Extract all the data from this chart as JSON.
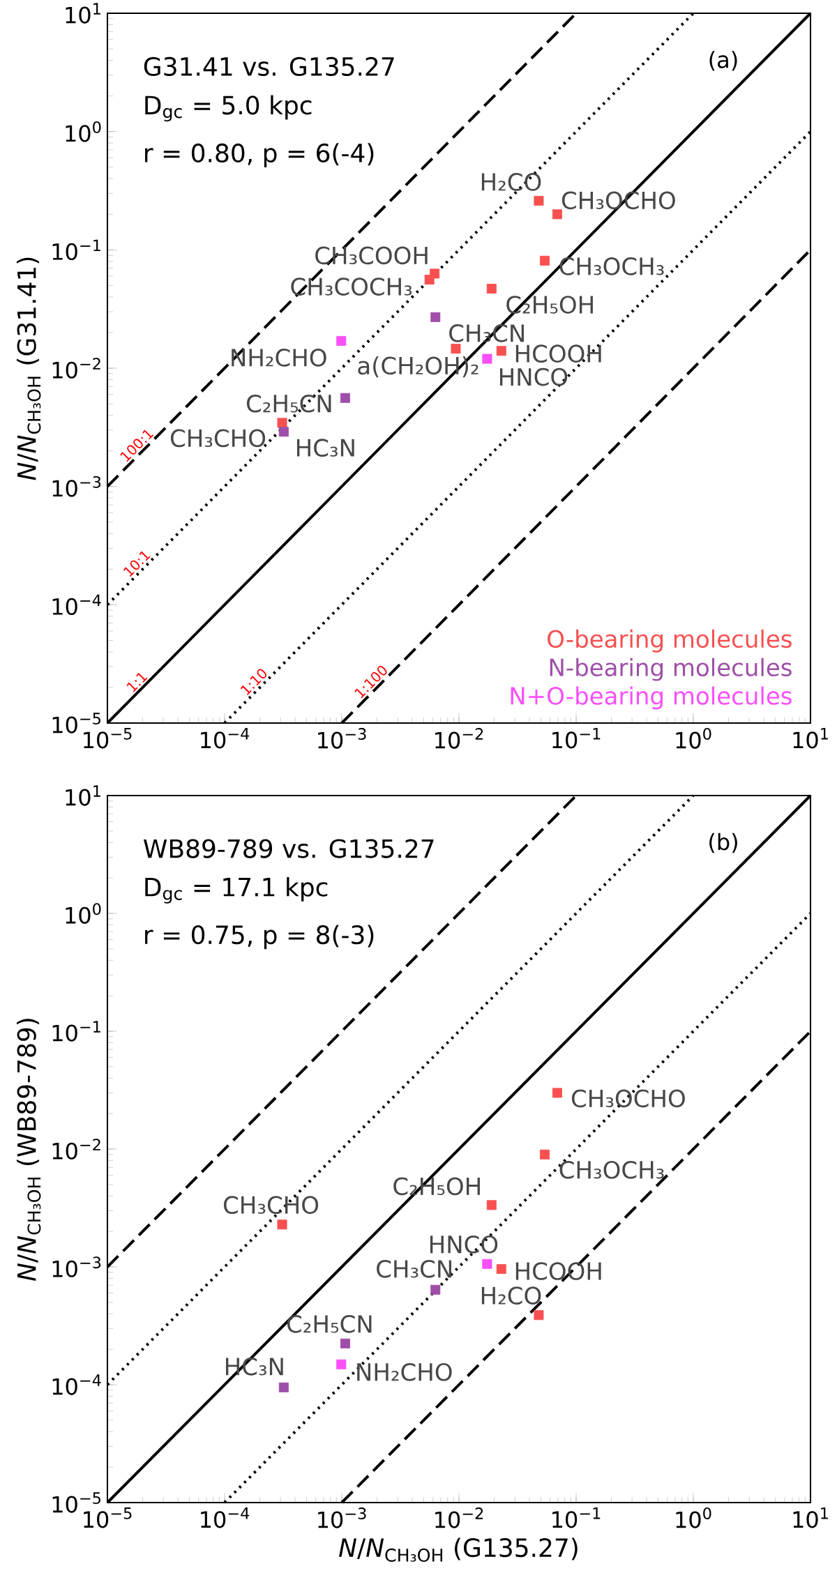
{
  "chart_data": [
    {
      "type": "scatter",
      "log": "xy",
      "marker": "square",
      "legend": "bottom right",
      "ylabel": "*N*/*N*$_{CH₃OH}$ (G31.41)",
      "xlim": [
        1e-05,
        10
      ],
      "ylim": [
        1e-05,
        10
      ],
      "xticks": [
        {
          "value": 1e-05,
          "label": "10$^{−5}$"
        },
        {
          "value": 0.0001,
          "label": "10$^{−4}$"
        },
        {
          "value": 0.001,
          "label": "10$^{−3}$"
        },
        {
          "value": 0.01,
          "label": "10$^{−2}$"
        },
        {
          "value": 0.1,
          "label": "10$^{−1}$"
        },
        {
          "value": 1,
          "label": "10$^{0}$"
        },
        {
          "value": 10,
          "label": "10$^{1}$"
        }
      ],
      "yticks": [
        {
          "value": 1e-05,
          "label": "10$^{−5}$"
        },
        {
          "value": 0.0001,
          "label": "10$^{−4}$"
        },
        {
          "value": 0.001,
          "label": "10$^{−3}$"
        },
        {
          "value": 0.01,
          "label": "10$^{−2}$"
        },
        {
          "value": 0.1,
          "label": "10$^{−1}$"
        },
        {
          "value": 1,
          "label": "10$^{0}$"
        },
        {
          "value": 10,
          "label": "10$^{1}$"
        }
      ],
      "series": [
        {
          "name": "O-bearing molecules",
          "color": "#f85050",
          "x": [
            0.048,
            0.069,
            0.054,
            0.0062,
            0.0056,
            0.019,
            0.0094,
            0.023,
            0.00031
          ],
          "values": [
            0.26,
            0.2,
            0.081,
            0.063,
            0.056,
            0.047,
            0.0146,
            0.014,
            0.00345
          ]
        },
        {
          "name": "N-bearing molecules",
          "color": "#9e4fa8",
          "x": [
            0.0063,
            0.00107,
            0.00032
          ],
          "values": [
            0.027,
            0.0056,
            0.0029
          ]
        },
        {
          "name": "N+O-bearing molecules",
          "color": "#f94ff9",
          "x": [
            0.00099,
            0.0174
          ],
          "values": [
            0.017,
            0.012
          ]
        },
        {
          "type": "line",
          "name": "100:1",
          "marker": "none",
          "color": "#000000",
          "line_style": "dashed",
          "x": [
            1e-05,
            0.1
          ],
          "values": [
            0.001,
            10
          ]
        },
        {
          "type": "line",
          "name": "10:1",
          "marker": "none",
          "color": "#000000",
          "line_style": "dotted",
          "x": [
            1e-05,
            1
          ],
          "values": [
            0.0001,
            10
          ]
        },
        {
          "type": "line",
          "name": "1:1",
          "marker": "none",
          "color": "#000000",
          "line_style": "solid",
          "x": [
            1e-05,
            10
          ],
          "values": [
            1e-05,
            10
          ]
        },
        {
          "type": "line",
          "name": "1:10",
          "marker": "none",
          "color": "#000000",
          "line_style": "dotted",
          "x": [
            0.0001,
            10
          ],
          "values": [
            1e-05,
            1
          ]
        },
        {
          "type": "line",
          "name": "1:100",
          "marker": "none",
          "color": "#000000",
          "line_style": "dashed",
          "x": [
            0.001,
            10
          ],
          "values": [
            1e-05,
            0.1
          ]
        }
      ],
      "annotations": [
        "G31.41 vs. G135.27",
        "D$_{gc}$ = 5.0 kpc",
        "r = 0.80, p = 6(-4)",
        "(a)",
        {
          "text": "H₂CO",
          "x": 0.048,
          "y": 0.26
        },
        {
          "text": "CH₃OCHO",
          "x": 0.069,
          "y": 0.2
        },
        {
          "text": "CH₃OCH₃",
          "x": 0.054,
          "y": 0.081
        },
        {
          "text": "CH₃COOH",
          "x": 0.0062,
          "y": 0.063
        },
        {
          "text": "CH₃COCH₃",
          "x": 0.0056,
          "y": 0.056
        },
        {
          "text": "C₂H₅OH",
          "x": 0.019,
          "y": 0.047
        },
        {
          "text": "CH₃CN",
          "x": 0.0063,
          "y": 0.027
        },
        {
          "text": "NH₂CHO",
          "x": 0.00099,
          "y": 0.017
        },
        {
          "text": "a(CH₂OH)₂",
          "x": 0.0094,
          "y": 0.0146
        },
        {
          "text": "HCOOH",
          "x": 0.023,
          "y": 0.014
        },
        {
          "text": "HNCO",
          "x": 0.0174,
          "y": 0.012
        },
        {
          "text": "C₂H₅CN",
          "x": 0.00107,
          "y": 0.0056
        },
        {
          "text": "CH₃CHO",
          "x": 0.00031,
          "y": 0.00345
        },
        {
          "text": "HC₃N",
          "x": 0.00032,
          "y": 0.0029
        }
      ]
    },
    {
      "type": "scatter",
      "log": "xy",
      "marker": "square",
      "xlabel": "*N*/*N*$_{CH₃OH}$ (G135.27)",
      "ylabel": "*N*/*N*$_{CH₃OH}$ (WB89-789)",
      "xlim": [
        1e-05,
        10
      ],
      "ylim": [
        1e-05,
        10
      ],
      "xticks": [
        {
          "value": 1e-05,
          "label": "10$^{−5}$"
        },
        {
          "value": 0.0001,
          "label": "10$^{−4}$"
        },
        {
          "value": 0.001,
          "label": "10$^{−3}$"
        },
        {
          "value": 0.01,
          "label": "10$^{−2}$"
        },
        {
          "value": 0.1,
          "label": "10$^{−1}$"
        },
        {
          "value": 1,
          "label": "10$^{0}$"
        },
        {
          "value": 10,
          "label": "10$^{1}$"
        }
      ],
      "yticks": [
        {
          "value": 1e-05,
          "label": "10$^{−5}$"
        },
        {
          "value": 0.0001,
          "label": "10$^{−4}$"
        },
        {
          "value": 0.001,
          "label": "10$^{−3}$"
        },
        {
          "value": 0.01,
          "label": "10$^{−2}$"
        },
        {
          "value": 0.1,
          "label": "10$^{−1}$"
        },
        {
          "value": 1,
          "label": "10$^{0}$"
        },
        {
          "value": 10,
          "label": "10$^{1}$"
        }
      ],
      "series": [
        {
          "color": "#f85050",
          "x": [
            0.069,
            0.054,
            0.019,
            0.00031,
            0.023,
            0.048
          ],
          "values": [
            0.03,
            0.009,
            0.00335,
            0.00229,
            0.00096,
            0.00039
          ]
        },
        {
          "color": "#9e4fa8",
          "x": [
            0.0063,
            0.00107,
            0.00032
          ],
          "values": [
            0.00064,
            0.000224,
            9.5e-05
          ]
        },
        {
          "color": "#f94ff9",
          "x": [
            0.0174,
            0.00099
          ],
          "values": [
            0.00106,
            0.000149
          ]
        },
        {
          "type": "line",
          "marker": "none",
          "color": "#000000",
          "line_style": "dashed",
          "x": [
            1e-05,
            0.1
          ],
          "values": [
            0.001,
            10
          ]
        },
        {
          "type": "line",
          "marker": "none",
          "color": "#000000",
          "line_style": "dotted",
          "x": [
            1e-05,
            1
          ],
          "values": [
            0.0001,
            10
          ]
        },
        {
          "type": "line",
          "marker": "none",
          "color": "#000000",
          "line_style": "solid",
          "x": [
            1e-05,
            10
          ],
          "values": [
            1e-05,
            10
          ]
        },
        {
          "type": "line",
          "marker": "none",
          "color": "#000000",
          "line_style": "dotted",
          "x": [
            0.0001,
            10
          ],
          "values": [
            1e-05,
            1
          ]
        },
        {
          "type": "line",
          "marker": "none",
          "color": "#000000",
          "line_style": "dashed",
          "x": [
            0.001,
            10
          ],
          "values": [
            1e-05,
            0.1
          ]
        }
      ],
      "annotations": [
        "WB89-789 vs. G135.27",
        "D$_{gc}$ = 17.1 kpc",
        "r = 0.75, p = 8(-3)",
        "(b)",
        {
          "text": "CH₃OCHO",
          "x": 0.069,
          "y": 0.03
        },
        {
          "text": "CH₃OCH₃",
          "x": 0.054,
          "y": 0.009
        },
        {
          "text": "C₂H₅OH",
          "x": 0.019,
          "y": 0.00335
        },
        {
          "text": "CH₃CHO",
          "x": 0.00031,
          "y": 0.00229
        },
        {
          "text": "HNCO",
          "x": 0.0174,
          "y": 0.00106
        },
        {
          "text": "HCOOH",
          "x": 0.023,
          "y": 0.00096
        },
        {
          "text": "CH₃CN",
          "x": 0.0063,
          "y": 0.00064
        },
        {
          "text": "H₂CO",
          "x": 0.048,
          "y": 0.00039
        },
        {
          "text": "C₂H₅CN",
          "x": 0.00107,
          "y": 0.000224
        },
        {
          "text": "NH₂CHO",
          "x": 0.00099,
          "y": 0.000149
        },
        {
          "text": "HC₃N",
          "x": 0.00032,
          "y": 9.5e-05
        }
      ]
    }
  ]
}
